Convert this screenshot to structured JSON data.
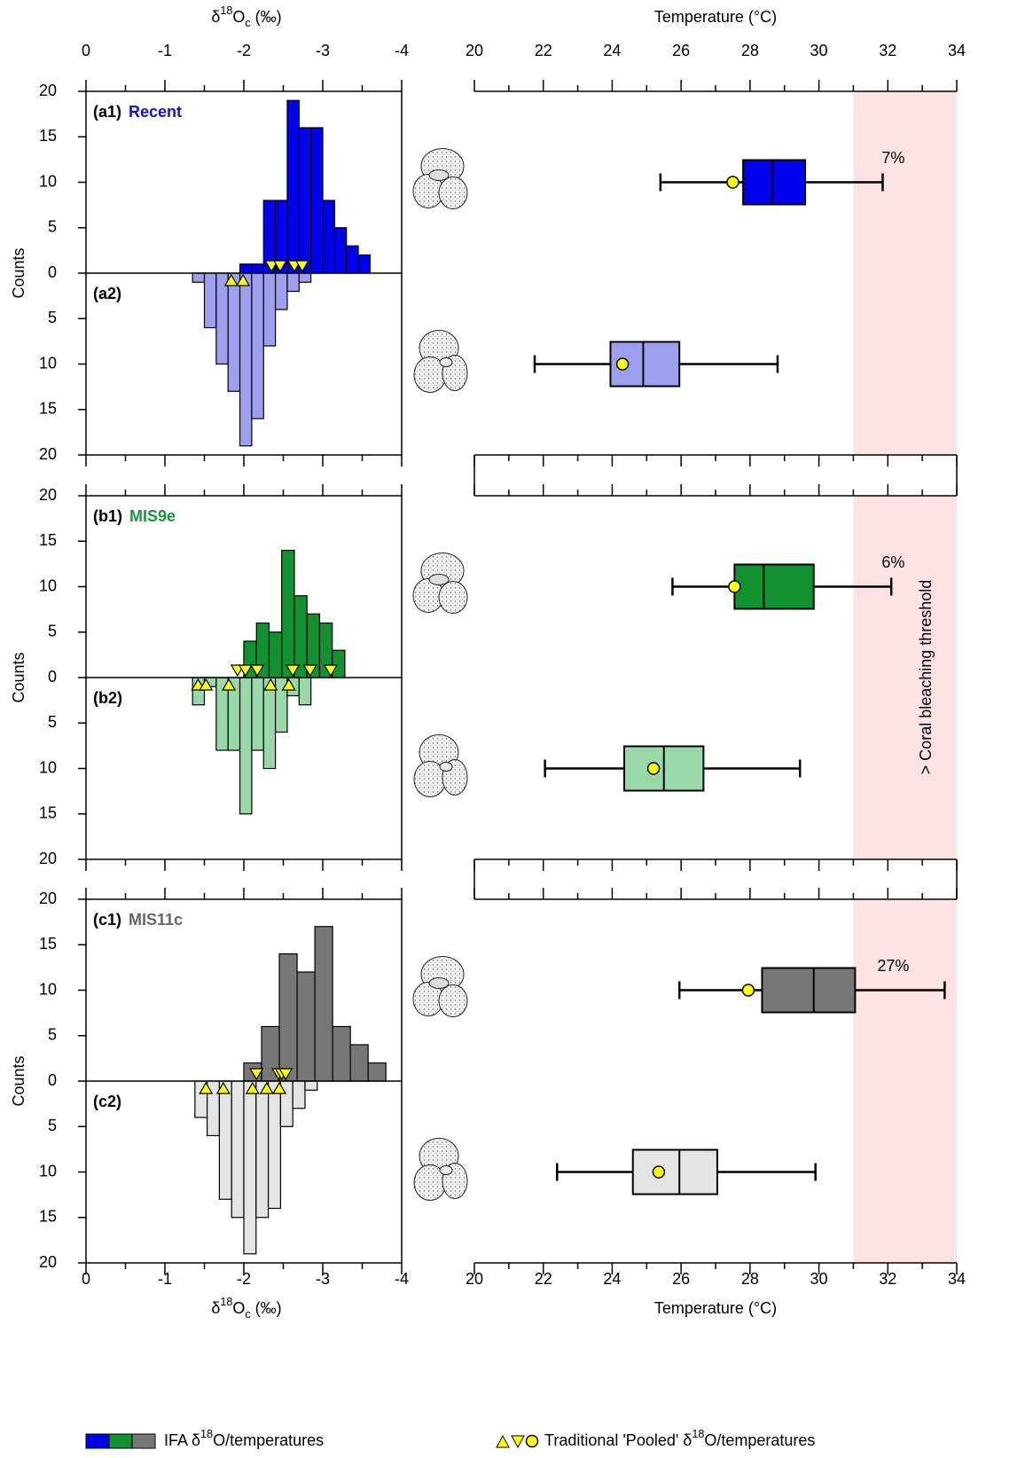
{
  "chart_data": [
    {
      "type": "histogram",
      "x_label": {
        "prefix": "δ",
        "sup": "18",
        "base": "O",
        "sub": "c",
        "suffix": " (‰)"
      },
      "y_label": "Counts",
      "xlim": [
        0,
        -4
      ],
      "xticks": [
        0,
        -1,
        -2,
        -3,
        -4
      ],
      "xminor_ticks": [
        -0.5,
        -1.5,
        -2.5,
        -3.5
      ],
      "ylim": [
        -20,
        20
      ],
      "yticks": [
        20,
        15,
        10,
        5,
        0,
        {
          "value": -5,
          "label": "5"
        },
        {
          "value": -10,
          "label": "10"
        },
        {
          "value": -15,
          "label": "15"
        },
        {
          "value": -20,
          "label": "20"
        }
      ],
      "marker_color": "#ffff00",
      "panels": [
        {
          "label": "(a1)",
          "name": "Recent",
          "name_color": "#1010e0",
          "lower_label": "(a2)",
          "series": [
            {
              "color": "#0000ee",
              "bins": [
                -1.95,
                -2.1,
                -2.25,
                -2.4,
                -2.55,
                -2.7,
                -2.85,
                -3,
                -3.15,
                -3.3,
                -3.45,
                -3.6
              ],
              "values": [
                1,
                1,
                8,
                8,
                19,
                16,
                16,
                8,
                5,
                3,
                2
              ]
            },
            {
              "color": "#9f9ff0",
              "bins": [
                -1.35,
                -1.5,
                -1.65,
                -1.8,
                -1.95,
                -2.1,
                -2.25,
                -2.4,
                -2.55,
                -2.7,
                -2.85
              ],
              "values": [
                -1,
                -6,
                -10,
                -13,
                -19,
                -16,
                -8,
                -4,
                -2,
                -1
              ]
            }
          ],
          "pooled": [
            {
              "marker": "down",
              "x": [
                -2.35,
                -2.46,
                -2.64,
                -2.74
              ]
            },
            {
              "marker": "up",
              "x": [
                -1.84,
                -1.99
              ]
            }
          ]
        },
        {
          "label": "(b1)",
          "name": "MIS9e",
          "name_color": "#1a9641",
          "lower_label": "(b2)",
          "series": [
            {
              "color": "#119130",
              "bins": [
                -2,
                -2.16,
                -2.32,
                -2.48,
                -2.64,
                -2.8,
                -2.96,
                -3.12,
                -3.28
              ],
              "values": [
                4,
                6,
                5,
                14,
                9,
                7,
                6,
                3
              ]
            },
            {
              "color": "#99d8a9",
              "bins": [
                -1.35,
                -1.5,
                -1.65,
                -1.8,
                -1.95,
                -2.1,
                -2.25,
                -2.4,
                -2.55,
                -2.7,
                -2.85
              ],
              "values": [
                -3,
                -1,
                -8,
                -8,
                -15,
                -8,
                -10,
                -6,
                -2,
                -3
              ]
            }
          ],
          "pooled": [
            {
              "marker": "down",
              "x": [
                -1.92,
                -2.02,
                -2.17,
                -2.62,
                -2.84,
                -3.1
              ]
            },
            {
              "marker": "up",
              "x": [
                -1.42,
                -1.52,
                -1.81,
                -2.34,
                -2.57
              ]
            }
          ]
        },
        {
          "label": "(c1)",
          "name": "MIS11c",
          "name_color": "#666666",
          "lower_label": "(c2)",
          "series": [
            {
              "color": "#777777",
              "bins": [
                -2,
                -2.225,
                -2.45,
                -2.675,
                -2.9,
                -3.125,
                -3.35,
                -3.575,
                -3.8
              ],
              "values": [
                2,
                6,
                14,
                12,
                17,
                6,
                4,
                2
              ]
            },
            {
              "color": "#e4e4e4",
              "bins": [
                -1.38,
                -1.535,
                -1.69,
                -1.845,
                -2,
                -2.155,
                -2.31,
                -2.465,
                -2.62,
                -2.775,
                -2.93
              ],
              "values": [
                -4,
                -6,
                -13,
                -15,
                -19,
                -15,
                -14,
                -5,
                -3,
                -1
              ]
            }
          ],
          "pooled": [
            {
              "marker": "down",
              "x": [
                -2.16,
                -2.44,
                -2.48,
                -2.53
              ]
            },
            {
              "marker": "up",
              "x": [
                -1.52,
                -1.74,
                -2.11,
                -2.29,
                -2.45
              ]
            }
          ]
        }
      ]
    },
    {
      "type": "boxplot",
      "x_label": "Temperature (°C)",
      "xlim": [
        20,
        34
      ],
      "xticks": [
        20,
        22,
        24,
        26,
        28,
        30,
        32,
        34
      ],
      "xminor_ticks": [
        21,
        23,
        25,
        27,
        29,
        31,
        33
      ],
      "threshold": {
        "value": 31,
        "label": "> Coral bleaching threshold",
        "color": "#fde2e4",
        "label_color": "#ff2020"
      },
      "marker_color": "#ffff00",
      "panels": [
        {
          "annotation": "7%",
          "boxes": [
            {
              "color": "#0000ee",
              "min": 25.4,
              "q1": 27.8,
              "median": 28.65,
              "q3": 29.6,
              "max": 31.85,
              "pooled": 27.5
            },
            {
              "color": "#9f9ff0",
              "min": 21.75,
              "q1": 23.95,
              "median": 24.9,
              "q3": 25.95,
              "max": 28.8,
              "pooled": 24.3
            }
          ]
        },
        {
          "annotation": "6%",
          "boxes": [
            {
              "color": "#119130",
              "min": 25.75,
              "q1": 27.55,
              "median": 28.4,
              "q3": 29.85,
              "max": 32.1,
              "pooled": 27.55
            },
            {
              "color": "#99d8a9",
              "min": 22.05,
              "q1": 24.35,
              "median": 25.5,
              "q3": 26.65,
              "max": 29.45,
              "pooled": 25.2
            }
          ]
        },
        {
          "annotation": "27%",
          "boxes": [
            {
              "color": "#777777",
              "min": 25.95,
              "q1": 28.35,
              "median": 29.85,
              "q3": 31.05,
              "max": 33.65,
              "pooled": 27.95
            },
            {
              "color": "#e4e4e4",
              "min": 22.4,
              "q1": 24.6,
              "median": 25.95,
              "q3": 27.05,
              "max": 29.9,
              "pooled": 25.35
            }
          ]
        }
      ]
    }
  ],
  "legend": {
    "ifa": {
      "prefix": "IFA δ",
      "sup": "18",
      "suffix": "O/temperatures"
    },
    "pooled": {
      "prefix": "Traditional 'Pooled' δ",
      "sup": "18",
      "suffix": "O/temperatures"
    }
  }
}
